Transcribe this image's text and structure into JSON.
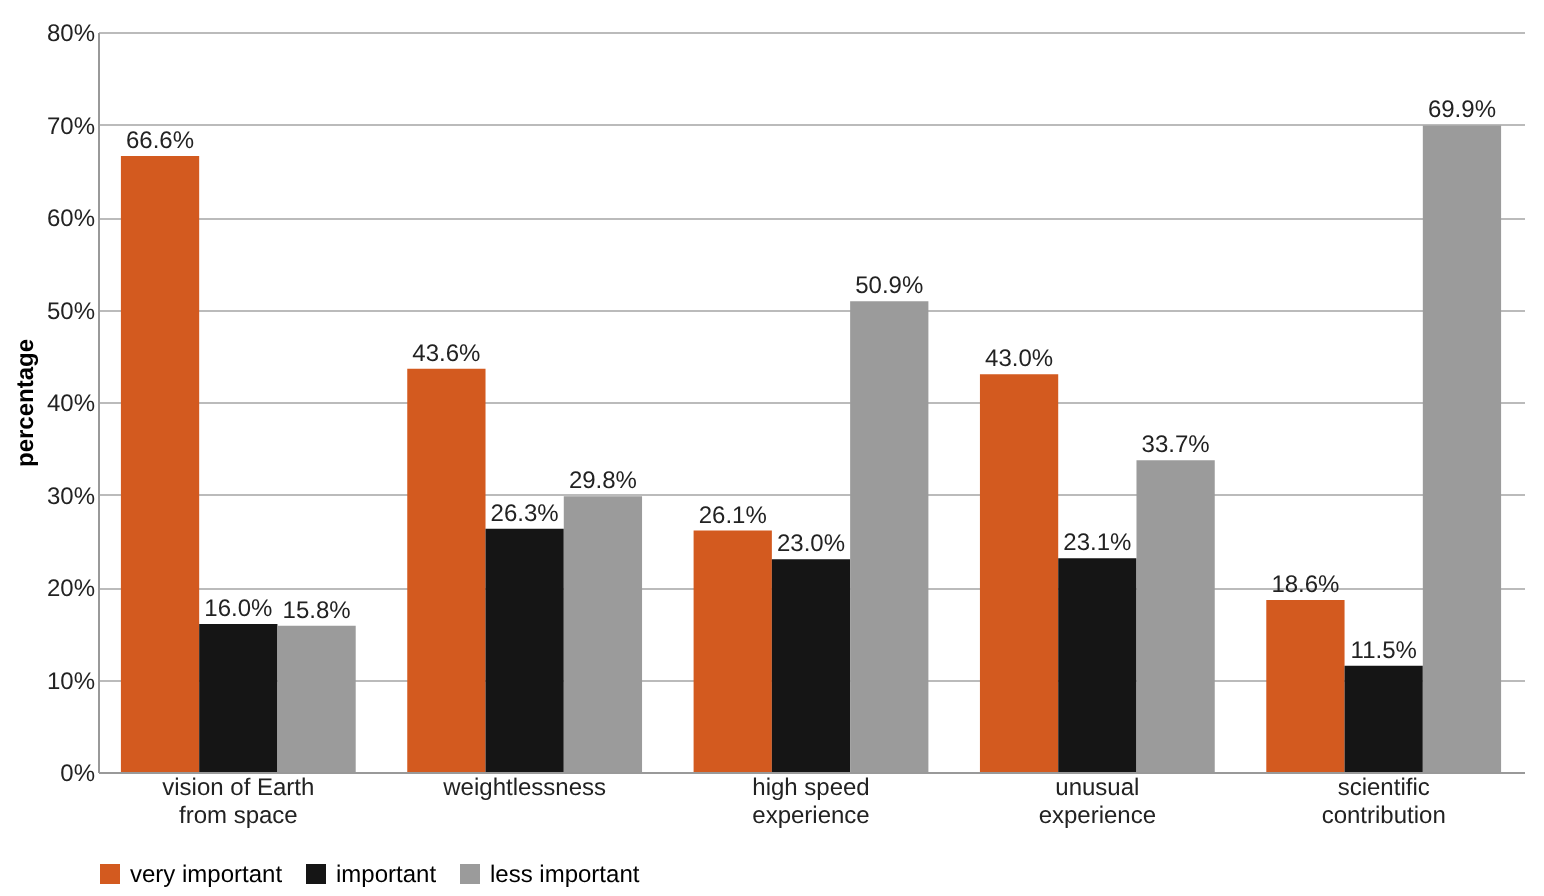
{
  "chart_data": {
    "type": "bar",
    "ylabel": "percentage",
    "categories": [
      "vision of Earth\nfrom space",
      "weightlessness",
      "high speed\nexperience",
      "unusual\nexperience",
      "scientific\ncontribution"
    ],
    "series": [
      {
        "name": "very important",
        "color": "#d35a1f",
        "values": [
          66.6,
          43.6,
          26.1,
          43.0,
          18.6
        ],
        "value_labels": [
          "66.6%",
          "43.6%",
          "26.1%",
          "43.0%",
          "18.6%"
        ]
      },
      {
        "name": "important",
        "color": "#151515",
        "values": [
          16.0,
          26.3,
          23.0,
          23.1,
          11.5
        ],
        "value_labels": [
          "16.0%",
          "26.3%",
          "23.0%",
          "23.1%",
          "11.5%"
        ]
      },
      {
        "name": "less important",
        "color": "#9b9b9b",
        "values": [
          15.8,
          29.8,
          50.9,
          33.7,
          69.9
        ],
        "value_labels": [
          "15.8%",
          "29.8%",
          "50.9%",
          "33.7%",
          "69.9%"
        ]
      }
    ],
    "ylim": [
      0,
      80
    ],
    "yticks": [
      {
        "value": 0,
        "label": "0%"
      },
      {
        "value": 10,
        "label": "10%"
      },
      {
        "value": 20,
        "label": "20%"
      },
      {
        "value": 30,
        "label": "30%"
      },
      {
        "value": 40,
        "label": "40%"
      },
      {
        "value": 50,
        "label": "50%"
      },
      {
        "value": 60,
        "label": "60%"
      },
      {
        "value": 70,
        "label": "70%"
      },
      {
        "value": 80,
        "label": "80%"
      }
    ],
    "grid": "y",
    "legend": "bottom"
  }
}
